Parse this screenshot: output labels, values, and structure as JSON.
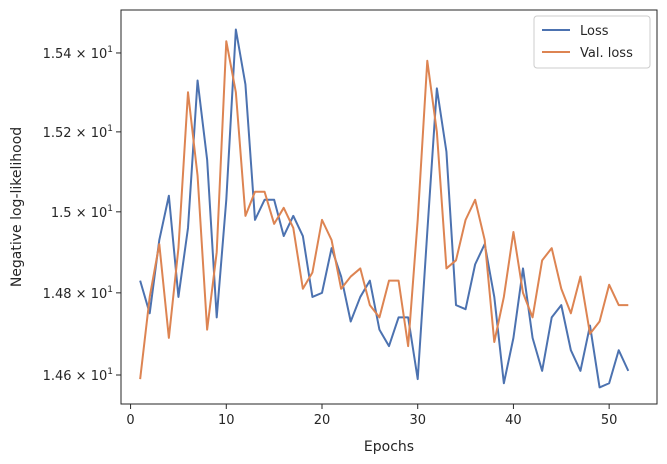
{
  "chart_data": {
    "type": "line",
    "xlabel": "Epochs",
    "ylabel": "Negative log-likelihood",
    "xlim": [
      -1,
      55
    ],
    "ylim": [
      14.53,
      15.51
    ],
    "y_scale": "log",
    "x_ticks": [
      0,
      10,
      20,
      30,
      40,
      50
    ],
    "y_ticks": [
      {
        "value": 14.6,
        "mantissa": "1.46",
        "exponent": "1"
      },
      {
        "value": 14.8,
        "mantissa": "1.48",
        "exponent": "1"
      },
      {
        "value": 15.0,
        "mantissa": "1.5",
        "exponent": "1"
      },
      {
        "value": 15.2,
        "mantissa": "1.52",
        "exponent": "1"
      },
      {
        "value": 15.4,
        "mantissa": "1.54",
        "exponent": "1"
      }
    ],
    "tick_times_sign": "×",
    "grid": false,
    "legend_position": "top-right",
    "x": [
      1,
      2,
      3,
      4,
      5,
      6,
      7,
      8,
      9,
      10,
      11,
      12,
      13,
      14,
      15,
      16,
      17,
      18,
      19,
      20,
      21,
      22,
      23,
      24,
      25,
      26,
      27,
      28,
      29,
      30,
      31,
      32,
      33,
      34,
      35,
      36,
      37,
      38,
      39,
      40,
      41,
      42,
      43,
      44,
      45,
      46,
      47,
      48,
      49,
      50,
      51,
      52
    ],
    "series": [
      {
        "name": "Loss",
        "color": "#4c72b0",
        "values": [
          14.83,
          14.75,
          14.93,
          15.04,
          14.79,
          14.96,
          15.33,
          15.13,
          14.74,
          15.03,
          15.46,
          15.32,
          14.98,
          15.03,
          15.03,
          14.94,
          14.99,
          14.94,
          14.79,
          14.8,
          14.91,
          14.84,
          14.73,
          14.79,
          14.83,
          14.71,
          14.67,
          14.74,
          14.74,
          14.59,
          14.95,
          15.31,
          15.15,
          14.77,
          14.76,
          14.87,
          14.92,
          14.79,
          14.58,
          14.69,
          14.86,
          14.69,
          14.61,
          14.74,
          14.77,
          14.66,
          14.61,
          14.72,
          14.57,
          14.58,
          14.66,
          14.61
        ]
      },
      {
        "name": "Val. loss",
        "color": "#dd8452",
        "values": [
          14.59,
          14.79,
          14.92,
          14.69,
          14.91,
          15.3,
          15.09,
          14.71,
          14.9,
          15.43,
          15.3,
          14.99,
          15.05,
          15.05,
          14.97,
          15.01,
          14.96,
          14.81,
          14.85,
          14.98,
          14.93,
          14.81,
          14.84,
          14.86,
          14.77,
          14.74,
          14.83,
          14.83,
          14.67,
          14.98,
          15.38,
          15.2,
          14.86,
          14.88,
          14.98,
          15.03,
          14.93,
          14.68,
          14.79,
          14.95,
          14.8,
          14.74,
          14.88,
          14.91,
          14.81,
          14.75,
          14.84,
          14.7,
          14.73,
          14.82,
          14.77,
          14.77
        ]
      }
    ]
  }
}
